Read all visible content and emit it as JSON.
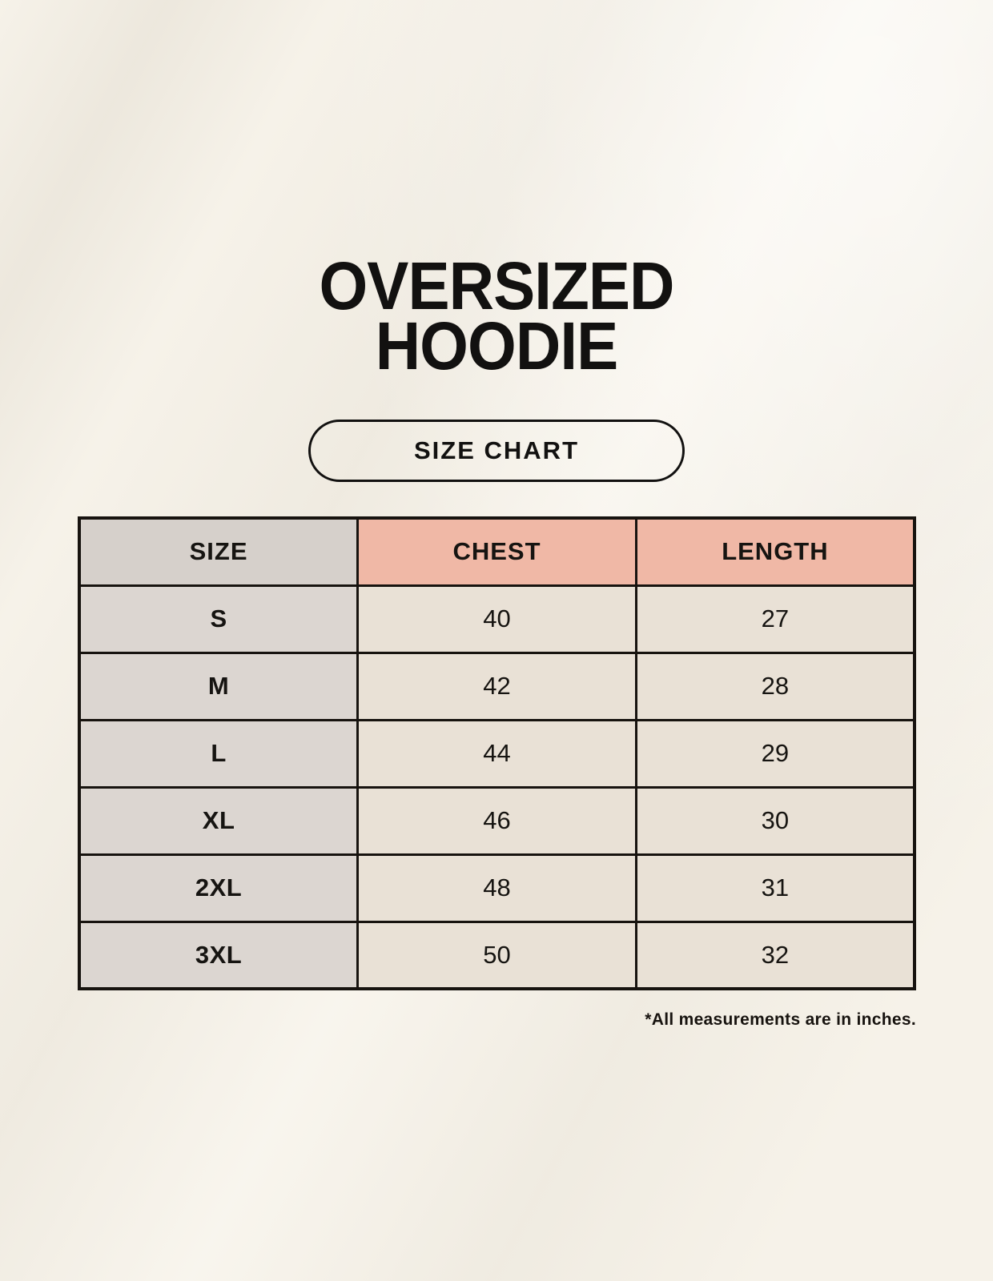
{
  "title": {
    "line1": "OVERSIZED",
    "line2": "HOODIE"
  },
  "badge": {
    "label": "SIZE CHART"
  },
  "table": {
    "headers": [
      "SIZE",
      "CHEST",
      "LENGTH"
    ],
    "rows": [
      [
        "S",
        "40",
        "27"
      ],
      [
        "M",
        "42",
        "28"
      ],
      [
        "L",
        "44",
        "29"
      ],
      [
        "XL",
        "46",
        "30"
      ],
      [
        "2XL",
        "48",
        "31"
      ],
      [
        "3XL",
        "50",
        "32"
      ]
    ]
  },
  "footnote": "*All measurements are in inches.",
  "colors": {
    "background": "#f6f2e9",
    "size_header_bg": "#d6d0cb",
    "measure_header_bg": "#f0b8a6",
    "size_cell_bg": "#dcd6d1",
    "value_cell_bg": "#e9e1d6",
    "border": "#17130f",
    "text": "#121110"
  },
  "chart_data": {
    "type": "table",
    "title": "OVERSIZED HOODIE — SIZE CHART",
    "columns": [
      "SIZE",
      "CHEST",
      "LENGTH"
    ],
    "rows": [
      [
        "S",
        40,
        27
      ],
      [
        "M",
        42,
        28
      ],
      [
        "L",
        44,
        29
      ],
      [
        "XL",
        46,
        30
      ],
      [
        "2XL",
        48,
        31
      ],
      [
        "3XL",
        50,
        32
      ]
    ],
    "units": "inches",
    "note": "*All measurements are in inches.",
    "legend_position": "none",
    "grid": true
  }
}
